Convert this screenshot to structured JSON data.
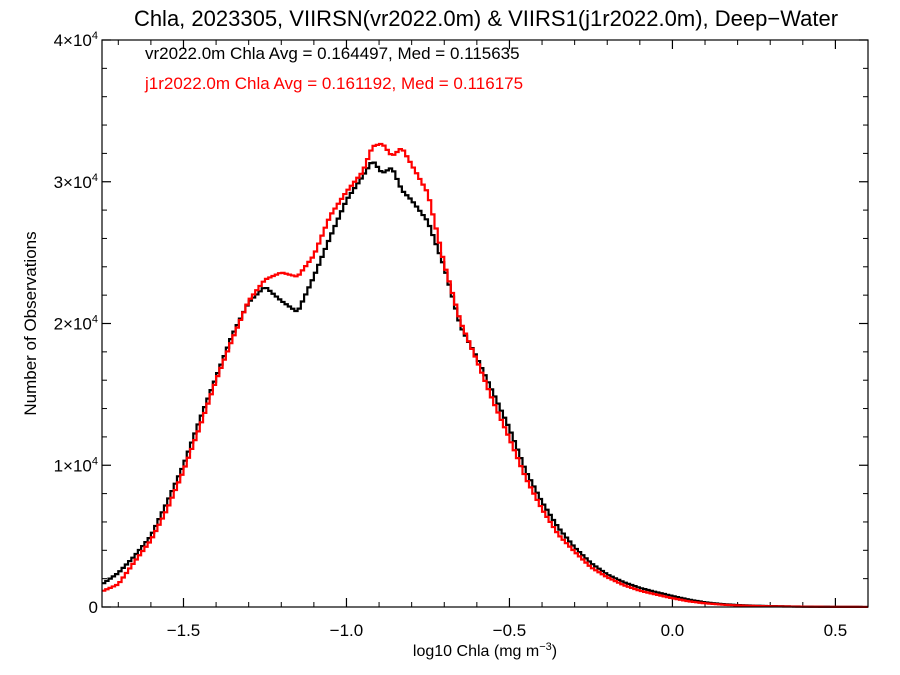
{
  "chart_data": {
    "type": "line",
    "step": true,
    "title": "Chla, 2023305, VIIRSN(vr2022.0m) & VIIRS1(j1r2022.0m), Deep−Water",
    "xlabel": "log10 Chla (mg m",
    "xlabel_sup": "−3",
    "xlabel_end": ")",
    "ylabel": "Number of Observations",
    "xlim": [
      -1.75,
      0.6
    ],
    "ylim": [
      0,
      40000
    ],
    "xticks": [
      {
        "value": -1.5,
        "label": "−1.5"
      },
      {
        "value": -1.0,
        "label": "−1.0"
      },
      {
        "value": -0.5,
        "label": "−0.5"
      },
      {
        "value": 0.0,
        "label": "0.0"
      },
      {
        "value": 0.5,
        "label": "0.5"
      }
    ],
    "yticks": [
      {
        "value": 0,
        "label": "0",
        "sup": ""
      },
      {
        "value": 10000,
        "label": "1×10",
        "sup": "4"
      },
      {
        "value": 20000,
        "label": "2×10",
        "sup": "4"
      },
      {
        "value": 30000,
        "label": "3×10",
        "sup": "4"
      },
      {
        "value": 40000,
        "label": "4×10",
        "sup": "4"
      }
    ],
    "annotations": [
      {
        "text": "vr2022.0m Chla Avg = 0.164497, Med = 0.115635",
        "color": "#000000"
      },
      {
        "text": "j1r2022.0m Chla Avg = 0.161192, Med = 0.116175",
        "color": "#ff0000"
      }
    ],
    "series": [
      {
        "color": "#000000",
        "points": [
          [
            -1.75,
            1600
          ],
          [
            -1.7,
            2400
          ],
          [
            -1.65,
            3600
          ],
          [
            -1.6,
            5000
          ],
          [
            -1.55,
            7400
          ],
          [
            -1.5,
            10000
          ],
          [
            -1.45,
            13200
          ],
          [
            -1.4,
            16200
          ],
          [
            -1.35,
            19200
          ],
          [
            -1.3,
            21500
          ],
          [
            -1.25,
            22600
          ],
          [
            -1.2,
            21600
          ],
          [
            -1.15,
            20800
          ],
          [
            -1.1,
            23300
          ],
          [
            -1.05,
            26100
          ],
          [
            -1.0,
            28700
          ],
          [
            -0.95,
            30400
          ],
          [
            -0.92,
            31500
          ],
          [
            -0.89,
            30600
          ],
          [
            -0.86,
            31000
          ],
          [
            -0.83,
            29400
          ],
          [
            -0.8,
            28700
          ],
          [
            -0.75,
            27200
          ],
          [
            -0.7,
            24000
          ],
          [
            -0.65,
            19800
          ],
          [
            -0.6,
            17600
          ],
          [
            -0.55,
            15100
          ],
          [
            -0.5,
            12600
          ],
          [
            -0.45,
            9600
          ],
          [
            -0.4,
            7400
          ],
          [
            -0.35,
            5600
          ],
          [
            -0.3,
            4200
          ],
          [
            -0.25,
            3100
          ],
          [
            -0.2,
            2300
          ],
          [
            -0.15,
            1750
          ],
          [
            -0.1,
            1350
          ],
          [
            -0.05,
            1050
          ],
          [
            0.0,
            780
          ],
          [
            0.05,
            520
          ],
          [
            0.1,
            330
          ],
          [
            0.15,
            210
          ],
          [
            0.2,
            140
          ],
          [
            0.25,
            95
          ],
          [
            0.3,
            65
          ],
          [
            0.35,
            45
          ],
          [
            0.4,
            30
          ],
          [
            0.45,
            20
          ],
          [
            0.5,
            12
          ],
          [
            0.55,
            8
          ],
          [
            0.6,
            5
          ]
        ]
      },
      {
        "color": "#ff0000",
        "points": [
          [
            -1.75,
            1100
          ],
          [
            -1.7,
            1600
          ],
          [
            -1.65,
            3200
          ],
          [
            -1.6,
            4700
          ],
          [
            -1.55,
            6900
          ],
          [
            -1.5,
            9600
          ],
          [
            -1.45,
            12700
          ],
          [
            -1.4,
            16000
          ],
          [
            -1.35,
            18900
          ],
          [
            -1.3,
            21600
          ],
          [
            -1.25,
            23100
          ],
          [
            -1.2,
            23600
          ],
          [
            -1.15,
            23300
          ],
          [
            -1.1,
            24800
          ],
          [
            -1.05,
            27600
          ],
          [
            -1.0,
            29300
          ],
          [
            -0.95,
            30700
          ],
          [
            -0.92,
            32500
          ],
          [
            -0.89,
            32700
          ],
          [
            -0.86,
            31800
          ],
          [
            -0.83,
            32400
          ],
          [
            -0.8,
            31200
          ],
          [
            -0.75,
            29200
          ],
          [
            -0.7,
            24200
          ],
          [
            -0.65,
            20100
          ],
          [
            -0.6,
            17400
          ],
          [
            -0.55,
            14500
          ],
          [
            -0.5,
            11900
          ],
          [
            -0.45,
            9100
          ],
          [
            -0.4,
            6900
          ],
          [
            -0.35,
            5100
          ],
          [
            -0.3,
            3900
          ],
          [
            -0.25,
            2800
          ],
          [
            -0.2,
            2100
          ],
          [
            -0.15,
            1550
          ],
          [
            -0.1,
            1150
          ],
          [
            -0.05,
            880
          ],
          [
            0.0,
            620
          ],
          [
            0.05,
            400
          ],
          [
            0.1,
            260
          ],
          [
            0.15,
            170
          ],
          [
            0.2,
            110
          ],
          [
            0.25,
            75
          ],
          [
            0.3,
            50
          ],
          [
            0.35,
            35
          ],
          [
            0.4,
            24
          ],
          [
            0.45,
            16
          ],
          [
            0.5,
            10
          ],
          [
            0.55,
            7
          ],
          [
            0.6,
            4
          ]
        ]
      }
    ]
  }
}
